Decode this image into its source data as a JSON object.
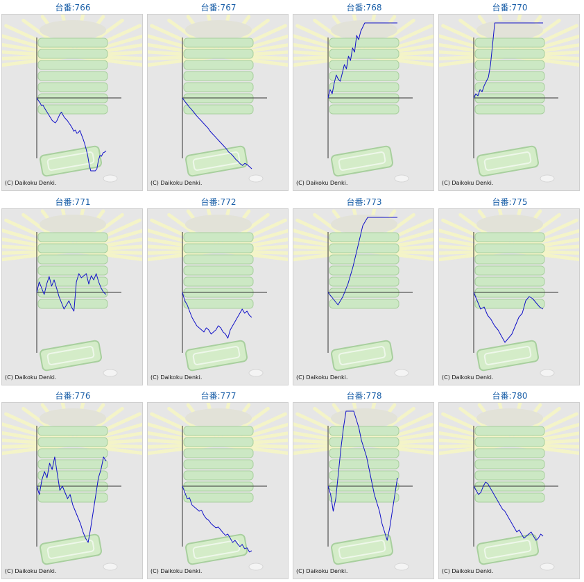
{
  "colors": {
    "title": "#1a5fa8",
    "line": "#1010c8",
    "axis": "#333333",
    "background": "#e6e6e6",
    "rays": "#f4f4c8",
    "machine": "#cce8c4",
    "machine_edge": "#a8cf9e",
    "tray": "#d4ecc8"
  },
  "copyright": "(C) Daikoku Denki.",
  "chart_data": [
    {
      "type": "line",
      "title": "台番:766",
      "series": [
        {
          "values": [
            0,
            -6,
            -11,
            -18,
            -17,
            -24,
            -30,
            -36,
            -42,
            -48,
            -54,
            -57,
            -60,
            -55,
            -47,
            -39,
            -34,
            -41,
            -47,
            -51,
            -55,
            -61,
            -66,
            -72,
            -80,
            -77,
            -85,
            -83,
            -78,
            -88,
            -98,
            -109,
            -122,
            -137,
            -160,
            -175,
            -190,
            -198,
            -186,
            -170,
            -150,
            -138,
            -140,
            -132,
            -130,
            -127
          ]
        }
      ]
    },
    {
      "type": "line",
      "title": "台番:767",
      "series": [
        {
          "values": [
            0,
            -8,
            -15,
            -22,
            -28,
            -35,
            -42,
            -48,
            -54,
            -60,
            -66,
            -72,
            -80,
            -86,
            -92,
            -98,
            -104,
            -110,
            -116,
            -122,
            -130,
            -134,
            -140,
            -147,
            -152,
            -158,
            -162,
            -157,
            -160,
            -165,
            -170
          ]
        }
      ]
    },
    {
      "type": "line",
      "title": "台番:768",
      "series": [
        {
          "values": [
            0,
            20,
            10,
            35,
            55,
            45,
            40,
            60,
            80,
            70,
            100,
            90,
            120,
            110,
            150,
            140,
            160,
            170,
            185,
            200,
            220,
            240,
            230,
            260,
            280,
            300,
            320,
            310,
            330,
            300,
            290,
            310,
            320,
            330,
            340
          ]
        }
      ]
    },
    {
      "type": "line",
      "title": "台番:770",
      "series": [
        {
          "values": [
            0,
            10,
            5,
            20,
            15,
            30,
            40,
            50,
            80,
            130,
            180,
            230,
            280,
            320,
            350,
            380,
            390,
            385,
            370,
            355,
            340,
            330,
            310,
            290,
            270,
            260,
            250,
            240,
            230,
            250,
            270,
            280,
            260,
            250
          ]
        }
      ]
    },
    {
      "type": "line",
      "title": "台番:771",
      "series": [
        {
          "values": [
            0,
            25,
            10,
            -5,
            20,
            38,
            15,
            30,
            10,
            -10,
            -25,
            -40,
            -30,
            -20,
            -35,
            -45,
            25,
            45,
            35,
            40,
            45,
            20,
            40,
            30,
            45,
            25,
            10,
            0,
            -5
          ]
        }
      ]
    },
    {
      "type": "line",
      "title": "台番:772",
      "series": [
        {
          "values": [
            0,
            -20,
            -30,
            -45,
            -60,
            -70,
            -80,
            -85,
            -90,
            -95,
            -85,
            -90,
            -100,
            -95,
            -90,
            -80,
            -85,
            -95,
            -100,
            -110,
            -90,
            -80,
            -70,
            -60,
            -50,
            -40,
            -50,
            -45,
            -55,
            -60
          ]
        }
      ]
    },
    {
      "type": "line",
      "title": "台番:773",
      "series": [
        {
          "values": [
            0,
            -15,
            -30,
            -10,
            20,
            60,
            110,
            160,
            220,
            280,
            350,
            420,
            500,
            600,
            700
          ]
        }
      ]
    },
    {
      "type": "line",
      "title": "台番:775",
      "series": [
        {
          "values": [
            0,
            -20,
            -40,
            -35,
            -55,
            -65,
            -80,
            -90,
            -105,
            -120,
            -110,
            -100,
            -80,
            -60,
            -50,
            -20,
            -10,
            -15,
            -25,
            -35,
            -40
          ]
        }
      ]
    },
    {
      "type": "line",
      "title": "台番:776",
      "series": [
        {
          "values": [
            0,
            -20,
            15,
            35,
            20,
            55,
            40,
            70,
            30,
            -10,
            0,
            -15,
            -30,
            -20,
            -45,
            -60,
            -75,
            -90,
            -110,
            -125,
            -135,
            -100,
            -60,
            -20,
            20,
            40,
            70,
            60
          ]
        }
      ]
    },
    {
      "type": "line",
      "title": "台番:777",
      "series": [
        {
          "values": [
            0,
            -15,
            -30,
            -28,
            -45,
            -50,
            -55,
            -60,
            -58,
            -70,
            -78,
            -82,
            -90,
            -95,
            -100,
            -98,
            -105,
            -112,
            -118,
            -115,
            -125,
            -135,
            -130,
            -138,
            -145,
            -140,
            -150,
            -148,
            -158,
            -155
          ]
        }
      ]
    },
    {
      "type": "line",
      "title": "台番:778",
      "series": [
        {
          "values": [
            0,
            -20,
            -60,
            -30,
            30,
            90,
            140,
            190,
            220,
            200,
            180,
            160,
            140,
            110,
            90,
            70,
            40,
            10,
            -20,
            -40,
            -60,
            -90,
            -110,
            -130,
            -100,
            -60,
            -20,
            20
          ]
        }
      ]
    },
    {
      "type": "line",
      "title": "台番:780",
      "series": [
        {
          "values": [
            0,
            -10,
            -20,
            -15,
            0,
            10,
            5,
            -5,
            -15,
            -25,
            -35,
            -45,
            -55,
            -60,
            -70,
            -80,
            -90,
            -100,
            -110,
            -105,
            -115,
            -125,
            -120,
            -115,
            -110,
            -120,
            -130,
            -125,
            -115,
            -120
          ]
        }
      ]
    }
  ]
}
